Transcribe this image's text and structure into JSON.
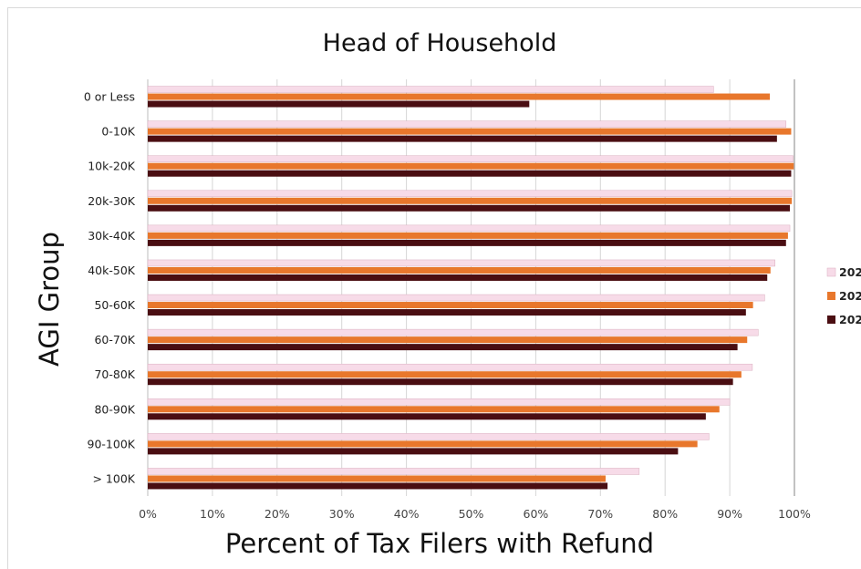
{
  "chart_data": {
    "type": "bar",
    "orientation": "horizontal",
    "title": "Head of Household",
    "xlabel": "Percent of Tax Filers with Refund",
    "ylabel": "AGI Group",
    "xlim": [
      0,
      100
    ],
    "xticks": [
      "0%",
      "10%",
      "20%",
      "30%",
      "40%",
      "50%",
      "60%",
      "70%",
      "80%",
      "90%",
      "100%"
    ],
    "grid": "vertical",
    "legend_position": "right",
    "categories": [
      "0 or Less",
      "0-10K",
      "10k-20K",
      "20k-30K",
      "30k-40K",
      "40k-50K",
      "50-60K",
      "60-70K",
      "70-80K",
      "80-90K",
      "90-100K",
      "> 100K"
    ],
    "series": [
      {
        "name": "202",
        "color": "#f7dbe8",
        "values": [
          87.5,
          98.7,
          99.8,
          99.6,
          99.3,
          97.0,
          95.4,
          94.4,
          93.5,
          90.0,
          86.8,
          76.0
        ]
      },
      {
        "name": "202",
        "color": "#e8772c",
        "values": [
          96.2,
          99.5,
          99.9,
          99.6,
          99.0,
          96.3,
          93.6,
          92.7,
          91.8,
          88.4,
          85.0,
          70.8
        ]
      },
      {
        "name": "202",
        "color": "#4a0e12",
        "values": [
          59.0,
          97.3,
          99.5,
          99.3,
          98.7,
          95.8,
          92.5,
          91.2,
          90.5,
          86.3,
          82.0,
          71.1
        ]
      }
    ]
  }
}
